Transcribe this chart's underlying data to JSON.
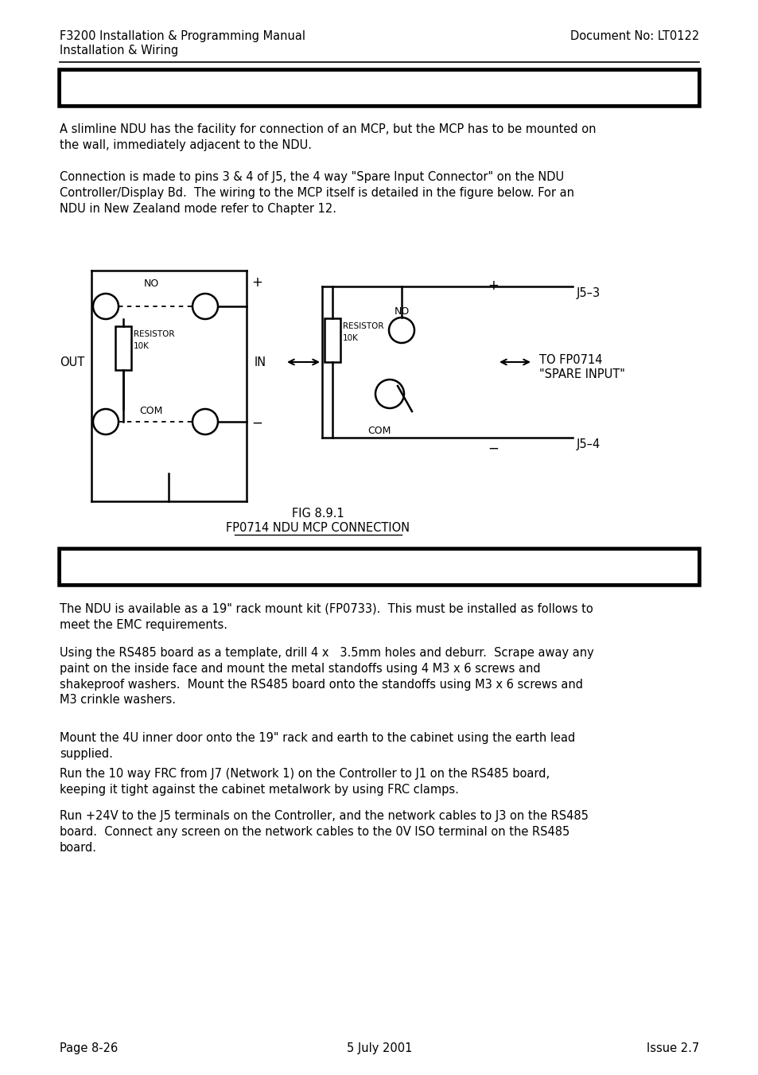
{
  "header_left_line1": "F3200 Installation & Programming Manual",
  "header_left_line2": "Installation & Wiring",
  "header_right": "Document No: LT0122",
  "para1": "A slimline NDU has the facility for connection of an MCP, but the MCP has to be mounted on\nthe wall, immediately adjacent to the NDU.",
  "para2": "Connection is made to pins 3 & 4 of J5, the 4 way \"Spare Input Connector\" on the NDU\nController/Display Bd.  The wiring to the MCP itself is detailed in the figure below. For an\nNDU in New Zealand mode refer to Chapter 12.",
  "fig_caption_line1": "FIG 8.9.1",
  "fig_caption_line2": "FP0714 NDU MCP CONNECTION",
  "para3": "The NDU is available as a 19\" rack mount kit (FP0733).  This must be installed as follows to\nmeet the EMC requirements.",
  "para4": "Using the RS485 board as a template, drill 4 x   3.5mm holes and deburr.  Scrape away any\npaint on the inside face and mount the metal standoffs using 4 M3 x 6 screws and\nshakeproof washers.  Mount the RS485 board onto the standoffs using M3 x 6 screws and\nM3 crinkle washers.",
  "para5": "Mount the 4U inner door onto the 19\" rack and earth to the cabinet using the earth lead\nsupplied.",
  "para6": "Run the 10 way FRC from J7 (Network 1) on the Controller to J1 on the RS485 board,\nkeeping it tight against the cabinet metalwork by using FRC clamps.",
  "para7": "Run +24V to the J5 terminals on the Controller, and the network cables to J3 on the RS485\nboard.  Connect any screen on the network cables to the 0V ISO terminal on the RS485\nboard.",
  "footer_left": "Page 8-26",
  "footer_center": "5 July 2001",
  "footer_right": "Issue 2.7",
  "bg_color": "#ffffff"
}
